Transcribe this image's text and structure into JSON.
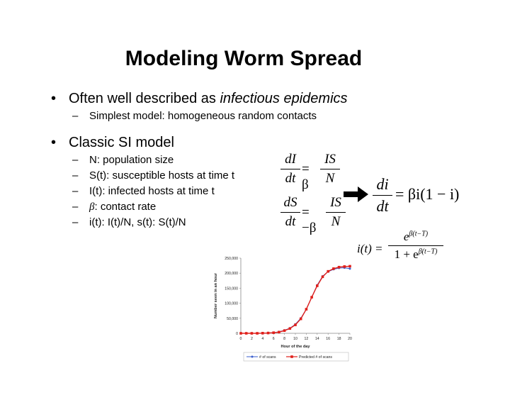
{
  "slide": {
    "title": "Modeling Worm Spread",
    "bullets": [
      {
        "text_plain": "Often well described as ",
        "text_italic": "infectious epidemics",
        "subitems": [
          "Simplest model: homogeneous random contacts"
        ]
      },
      {
        "text": "Classic SI model",
        "subitems": [
          {
            "text": "N: population size"
          },
          {
            "text": "S(t): susceptible hosts at time t"
          },
          {
            "text": "I(t): infected hosts at time t"
          },
          {
            "symbol": "β",
            "text": ": contact rate"
          },
          {
            "text": "i(t): I(t)/N, s(t): S(t)/N"
          }
        ]
      }
    ],
    "bullet_glyph": "•",
    "dash_glyph": "–",
    "equations": {
      "eq1": {
        "lhs_num": "dI",
        "lhs_den": "dt",
        "op": "= β",
        "rhs_num": "IS",
        "rhs_den": "N"
      },
      "eq2": {
        "lhs_num": "dS",
        "lhs_den": "dt",
        "op": "= −β",
        "rhs_num": "IS",
        "rhs_den": "N"
      },
      "eq3": {
        "lhs_num": "di",
        "lhs_den": "dt",
        "rhs": "= βi(1 − i)"
      },
      "eq4": {
        "lhs": "i(t) =",
        "num": "e",
        "num_exp": "β(t−T)",
        "den": "1 + e",
        "den_exp": "β(t−T)"
      }
    }
  },
  "chart_data": {
    "type": "line",
    "x": [
      0,
      1,
      2,
      3,
      4,
      5,
      6,
      7,
      8,
      9,
      10,
      11,
      12,
      13,
      14,
      15,
      16,
      17,
      18,
      19,
      20
    ],
    "series": [
      {
        "name": "# of scans",
        "color": "#3a5fcd",
        "values": [
          0,
          0,
          0,
          0,
          500,
          1000,
          2000,
          5000,
          10000,
          17000,
          30000,
          50000,
          80000,
          120000,
          160000,
          190000,
          205000,
          213000,
          217000,
          218000,
          215000
        ]
      },
      {
        "name": "Predicted # of scans",
        "color": "#e0201b",
        "values": [
          0,
          0,
          0,
          0,
          500,
          1000,
          2000,
          4000,
          9000,
          16000,
          28000,
          48000,
          80000,
          120000,
          158000,
          188000,
          206000,
          215000,
          220000,
          222000,
          223000
        ]
      }
    ],
    "xlabel": "Hour of the day",
    "ylabel": "Number seen in an hour",
    "xlim": [
      0,
      20
    ],
    "ylim": [
      0,
      250000
    ],
    "xticks": [
      "0",
      "2",
      "4",
      "6",
      "8",
      "10",
      "12",
      "14",
      "16",
      "18",
      "20"
    ],
    "yticks": [
      "0",
      "50,000",
      "100,000",
      "150,000",
      "200,000",
      "250,000"
    ],
    "grid": false,
    "legend": "bottom"
  }
}
